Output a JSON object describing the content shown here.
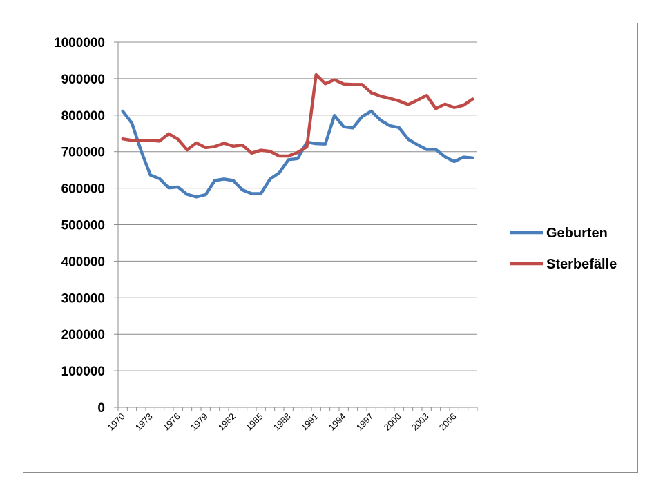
{
  "chart_data": {
    "type": "line",
    "title": "",
    "xlabel": "",
    "ylabel": "",
    "ylim": [
      0,
      1000000
    ],
    "yticks": [
      0,
      100000,
      200000,
      300000,
      400000,
      500000,
      600000,
      700000,
      800000,
      900000,
      1000000
    ],
    "ytick_labels": [
      "0",
      "100000",
      "200000",
      "300000",
      "400000",
      "500000",
      "600000",
      "700000",
      "800000",
      "900000",
      "1000000"
    ],
    "xtick_labels": [
      "1970",
      "1973",
      "1976",
      "1979",
      "1982",
      "1985",
      "1988",
      "1991",
      "1994",
      "1997",
      "2000",
      "2003",
      "2006"
    ],
    "x": [
      1970,
      1971,
      1972,
      1973,
      1974,
      1975,
      1976,
      1977,
      1978,
      1979,
      1980,
      1981,
      1982,
      1983,
      1984,
      1985,
      1986,
      1987,
      1988,
      1989,
      1990,
      1991,
      1992,
      1993,
      1994,
      1995,
      1996,
      1997,
      1998,
      1999,
      2000,
      2001,
      2002,
      2003,
      2004,
      2005,
      2006,
      2007,
      2008
    ],
    "grid": true,
    "legend_position": "right",
    "series": [
      {
        "name": "Geburten",
        "color": "#4a7ebb",
        "values": [
          811000,
          778000,
          702000,
          636000,
          626000,
          601000,
          603000,
          583000,
          576000,
          582000,
          621000,
          625000,
          621000,
          595000,
          585000,
          585000,
          625000,
          642000,
          678000,
          681000,
          726000,
          722000,
          721000,
          799000,
          768000,
          765000,
          796000,
          811000,
          786000,
          771000,
          766000,
          734000,
          719000,
          706000,
          706000,
          686000,
          673000,
          685000,
          683000
        ]
      },
      {
        "name": "Sterbefälle",
        "color": "#be4b48",
        "values": [
          735000,
          731000,
          731000,
          731000,
          729000,
          749000,
          734000,
          705000,
          724000,
          711000,
          714000,
          723000,
          715000,
          718000,
          696000,
          704000,
          701000,
          688000,
          688000,
          698000,
          713000,
          911000,
          886000,
          897000,
          885000,
          884000,
          884000,
          861000,
          852000,
          846000,
          839000,
          829000,
          841000,
          854000,
          818000,
          830000,
          821000,
          827000,
          844000
        ]
      }
    ]
  }
}
